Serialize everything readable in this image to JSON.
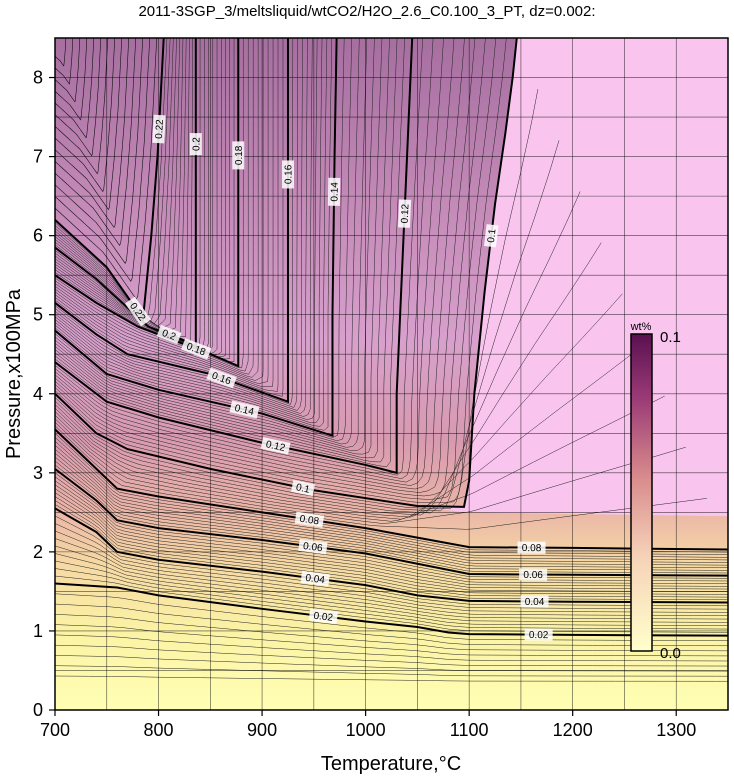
{
  "chart_data": {
    "type": "heatmap",
    "title": "2011-3SGP_3/meltsliquid/wtCO2/H2O_2.6_C0.100_3_PT, dz=0.002:",
    "xlabel": "Temperature,°C",
    "ylabel": "Pressure,x100MPa",
    "xlim": [
      700,
      1350
    ],
    "ylim": [
      0,
      8.5
    ],
    "x_ticks": [
      "700",
      "800",
      "900",
      "1000",
      "1100",
      "1200",
      "1300"
    ],
    "y_ticks": [
      "0",
      "1",
      "2",
      "3",
      "4",
      "5",
      "6",
      "7",
      "8"
    ],
    "grid": true,
    "colorbar": {
      "unit": "wt%",
      "min_label": "0.0",
      "max_label": "0.1",
      "range": [
        0.0,
        0.1
      ],
      "placement": "right",
      "colors": [
        "#ffffcc",
        "#f2b49c",
        "#c06080",
        "#701a5c",
        "#f9c4ee"
      ]
    },
    "contour_interval": 0.002,
    "major_contours": [
      {
        "level": 0.02,
        "label": "0.02",
        "points": [
          [
            700,
            1.6
          ],
          [
            760,
            1.55
          ],
          [
            800,
            1.45
          ],
          [
            900,
            1.28
          ],
          [
            1000,
            1.12
          ],
          [
            1050,
            1.05
          ],
          [
            1080,
            0.98
          ],
          [
            1100,
            0.96
          ],
          [
            1200,
            0.95
          ],
          [
            1350,
            0.94
          ]
        ]
      },
      {
        "level": 0.04,
        "label": "0.04",
        "points": [
          [
            700,
            2.55
          ],
          [
            740,
            2.25
          ],
          [
            760,
            2.0
          ],
          [
            800,
            1.9
          ],
          [
            900,
            1.75
          ],
          [
            1000,
            1.58
          ],
          [
            1050,
            1.45
          ],
          [
            1100,
            1.38
          ],
          [
            1200,
            1.37
          ],
          [
            1350,
            1.36
          ]
        ]
      },
      {
        "level": 0.06,
        "label": "0.06",
        "points": [
          [
            700,
            3.05
          ],
          [
            740,
            2.65
          ],
          [
            760,
            2.4
          ],
          [
            800,
            2.3
          ],
          [
            900,
            2.15
          ],
          [
            1000,
            1.98
          ],
          [
            1050,
            1.85
          ],
          [
            1100,
            1.72
          ],
          [
            1200,
            1.71
          ],
          [
            1350,
            1.7
          ]
        ]
      },
      {
        "level": 0.08,
        "label": "0.08",
        "points": [
          [
            700,
            3.55
          ],
          [
            740,
            3.05
          ],
          [
            760,
            2.8
          ],
          [
            800,
            2.7
          ],
          [
            900,
            2.5
          ],
          [
            1000,
            2.3
          ],
          [
            1050,
            2.18
          ],
          [
            1100,
            2.06
          ],
          [
            1200,
            2.05
          ],
          [
            1350,
            2.03
          ]
        ]
      },
      {
        "level": 0.1,
        "label": "0.1",
        "points": [
          [
            700,
            4.0
          ],
          [
            740,
            3.5
          ],
          [
            770,
            3.3
          ],
          [
            850,
            3.05
          ],
          [
            950,
            2.78
          ],
          [
            1050,
            2.58
          ],
          [
            1095,
            2.57
          ],
          [
            1100,
            2.9
          ],
          [
            1105,
            4.0
          ],
          [
            1115,
            5.3
          ],
          [
            1125,
            6.4
          ],
          [
            1135,
            7.3
          ],
          [
            1142,
            8.0
          ],
          [
            1146,
            8.5
          ]
        ]
      },
      {
        "level": 0.12,
        "label": "0.12",
        "points": [
          [
            700,
            4.4
          ],
          [
            750,
            3.9
          ],
          [
            800,
            3.7
          ],
          [
            900,
            3.38
          ],
          [
            1000,
            3.1
          ],
          [
            1030,
            3.0
          ],
          [
            1030,
            4.0
          ],
          [
            1035,
            5.5
          ],
          [
            1040,
            7.0
          ],
          [
            1045,
            8.5
          ]
        ]
      },
      {
        "level": 0.14,
        "label": "0.14",
        "points": [
          [
            700,
            4.8
          ],
          [
            750,
            4.25
          ],
          [
            800,
            4.05
          ],
          [
            900,
            3.75
          ],
          [
            968,
            3.47
          ],
          [
            968,
            5.0
          ],
          [
            970,
            7.0
          ],
          [
            972,
            8.5
          ]
        ]
      },
      {
        "level": 0.16,
        "label": "0.16",
        "points": [
          [
            700,
            5.15
          ],
          [
            740,
            4.75
          ],
          [
            770,
            4.5
          ],
          [
            850,
            4.25
          ],
          [
            925,
            3.9
          ],
          [
            925,
            5.5
          ],
          [
            925,
            8.5
          ]
        ]
      },
      {
        "level": 0.18,
        "label": "0.18",
        "points": [
          [
            700,
            5.5
          ],
          [
            740,
            5.15
          ],
          [
            780,
            4.85
          ],
          [
            850,
            4.5
          ],
          [
            877,
            4.35
          ],
          [
            877,
            6.0
          ],
          [
            877,
            8.5
          ]
        ]
      },
      {
        "level": 0.2,
        "label": "0.2",
        "points": [
          [
            700,
            5.85
          ],
          [
            740,
            5.45
          ],
          [
            790,
            4.85
          ],
          [
            820,
            4.7
          ],
          [
            836,
            4.6
          ],
          [
            836,
            6.5
          ],
          [
            836,
            8.5
          ]
        ]
      },
      {
        "level": 0.22,
        "label": "0.22",
        "points": [
          [
            700,
            6.2
          ],
          [
            750,
            5.6
          ],
          [
            785,
            4.95
          ],
          [
            793,
            6.0
          ],
          [
            799,
            7.0
          ],
          [
            805,
            8.5
          ]
        ]
      }
    ]
  }
}
